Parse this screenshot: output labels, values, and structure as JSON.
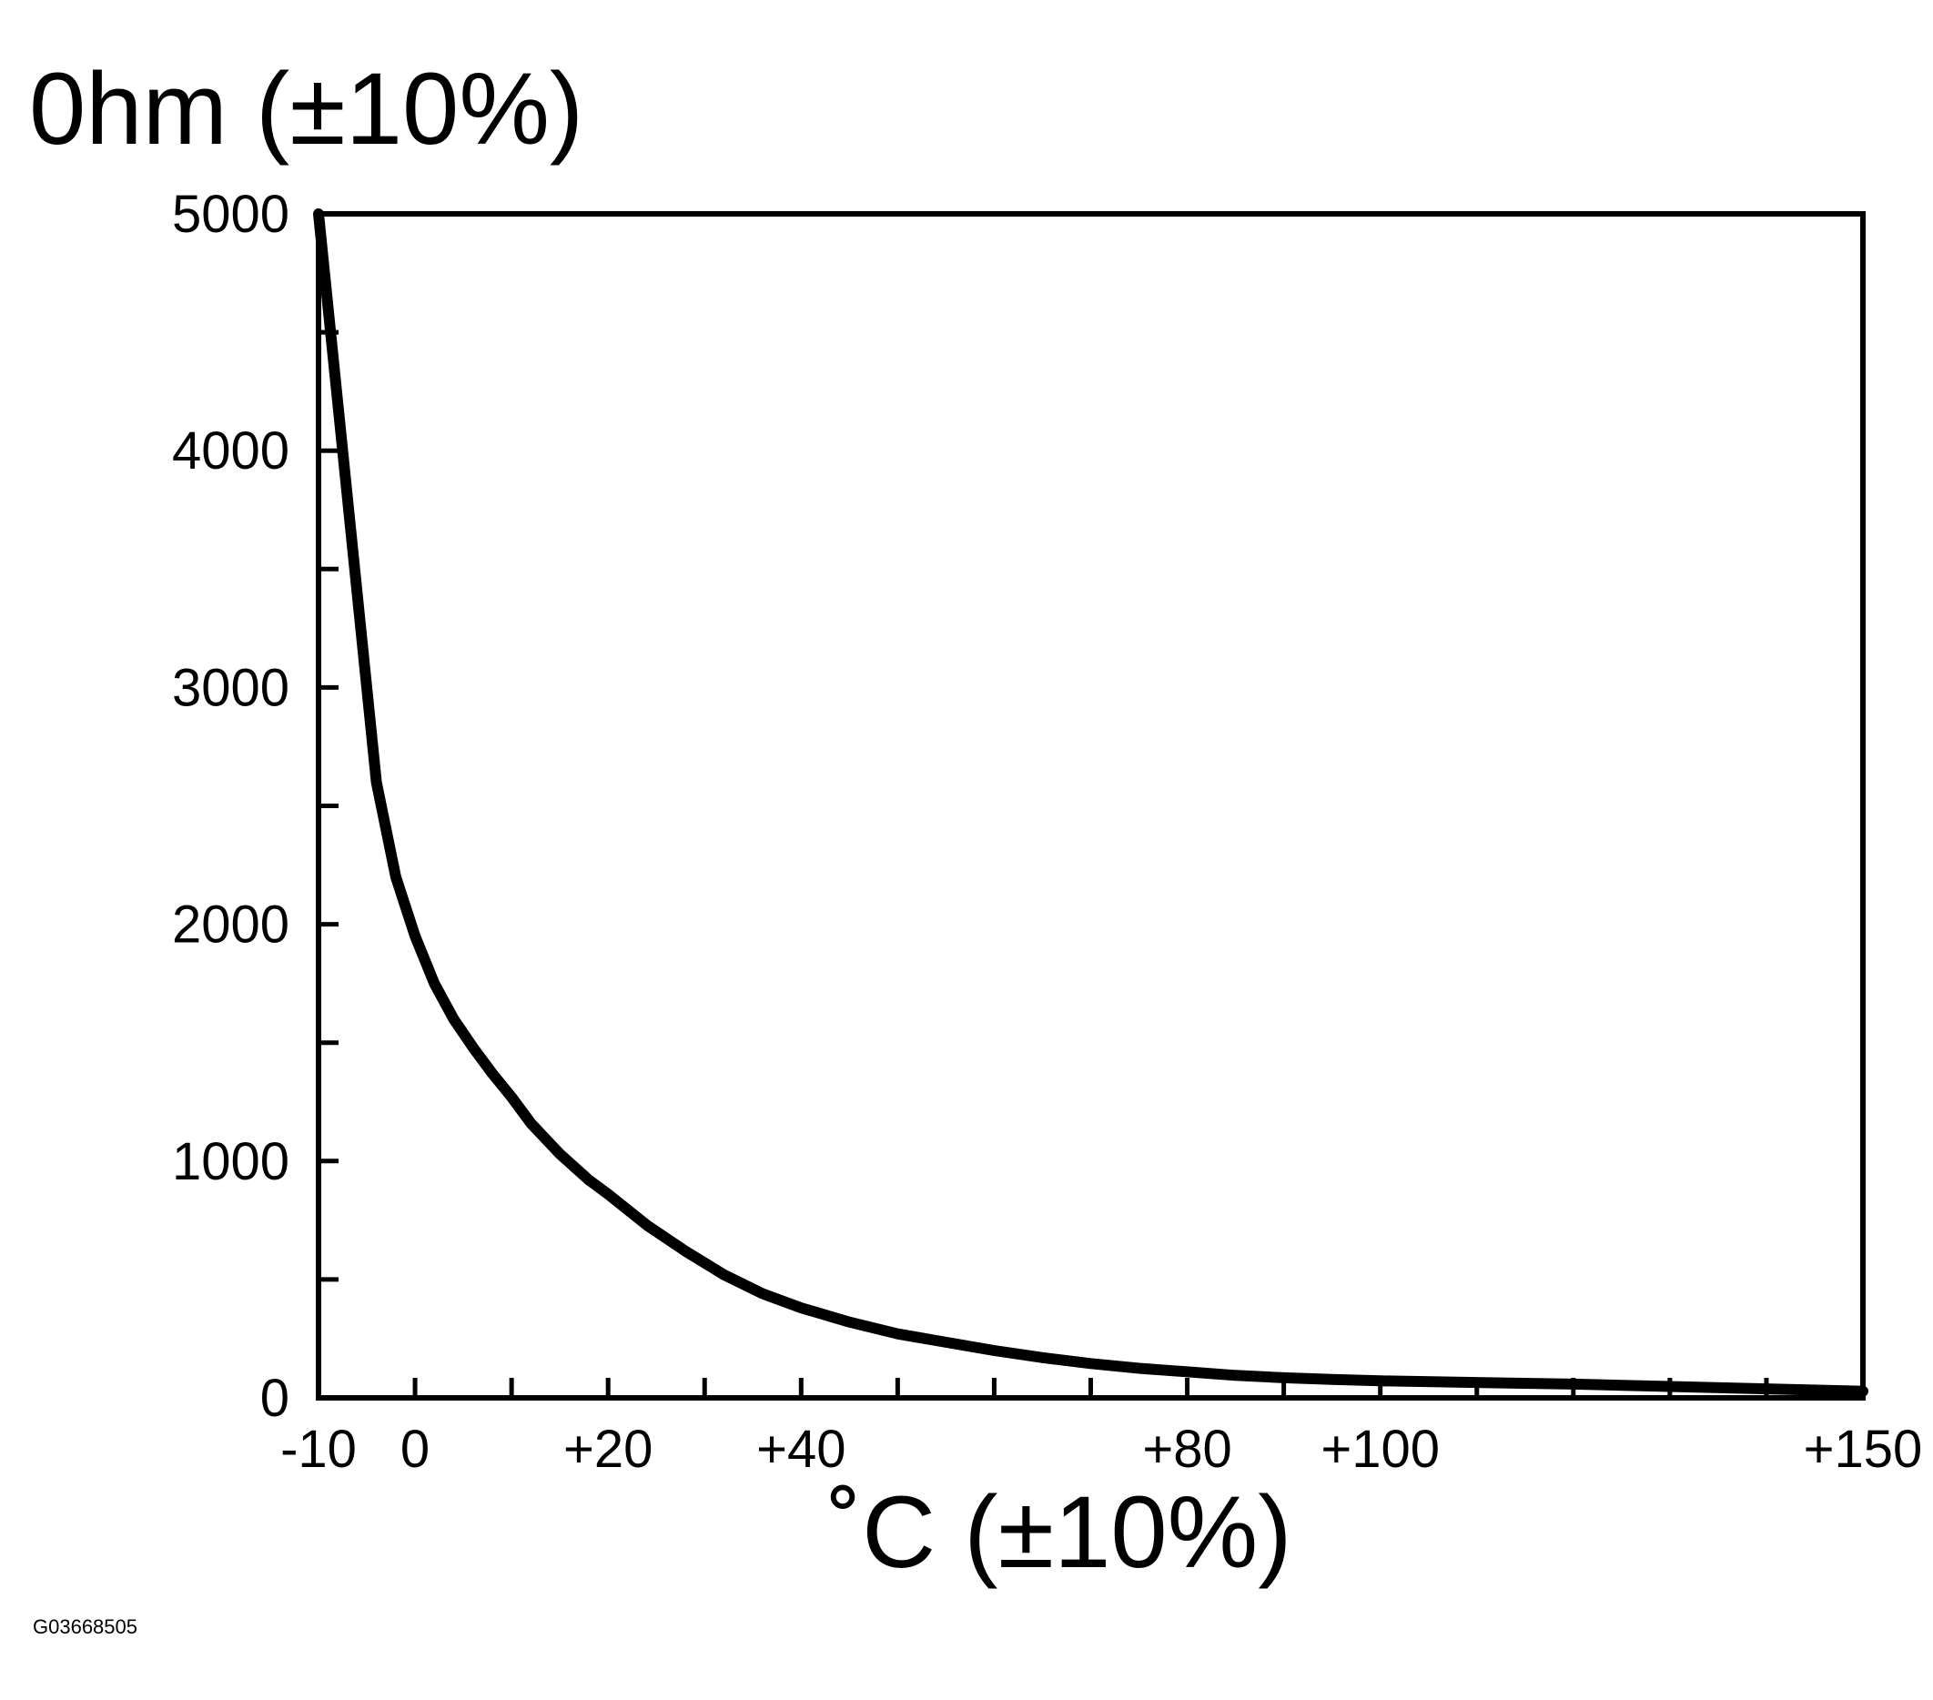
{
  "figure_id": "G03668505",
  "chart_data": {
    "type": "line",
    "ylabel": "0hm (±10%)",
    "xlabel": "˚C (±10%)",
    "xlim": [
      -10,
      150
    ],
    "ylim": [
      0,
      5000
    ],
    "x_tick_labels": [
      {
        "value": -10,
        "label": "-10"
      },
      {
        "value": 0,
        "label": "0"
      },
      {
        "value": 20,
        "label": "+20"
      },
      {
        "value": 40,
        "label": "+40"
      },
      {
        "value": 80,
        "label": "+80"
      },
      {
        "value": 100,
        "label": "+100"
      },
      {
        "value": 150,
        "label": "+150"
      }
    ],
    "x_minor_ticks": [
      10,
      30,
      50,
      60,
      70,
      90,
      110,
      120,
      130,
      140
    ],
    "y_tick_labels": [
      {
        "value": 0,
        "label": "0"
      },
      {
        "value": 1000,
        "label": "1000"
      },
      {
        "value": 2000,
        "label": "2000"
      },
      {
        "value": 3000,
        "label": "3000"
      },
      {
        "value": 4000,
        "label": "4000"
      },
      {
        "value": 5000,
        "label": "5000"
      }
    ],
    "y_minor_ticks": [
      500,
      1500,
      2500,
      3500,
      4500
    ],
    "grid": false,
    "series": [
      {
        "x": [
          -10,
          -8,
          -6,
          -4,
          -2,
          0,
          2,
          4,
          6,
          8,
          10,
          12,
          15,
          18,
          20,
          24,
          28,
          32,
          36,
          40,
          45,
          50,
          55,
          60,
          65,
          70,
          75,
          80,
          85,
          90,
          95,
          100,
          110,
          120,
          130,
          140,
          150
        ],
        "y": [
          5000,
          4200,
          3400,
          2600,
          2200,
          1950,
          1750,
          1600,
          1480,
          1370,
          1270,
          1160,
          1030,
          920,
          860,
          730,
          620,
          520,
          440,
          380,
          320,
          270,
          235,
          200,
          170,
          145,
          125,
          110,
          95,
          85,
          78,
          72,
          65,
          58,
          48,
          38,
          28
        ]
      }
    ]
  }
}
